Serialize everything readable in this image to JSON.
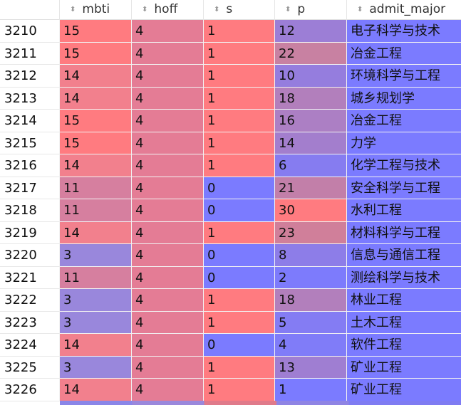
{
  "columns": [
    {
      "key": "mbti",
      "label": "mbti"
    },
    {
      "key": "hoff",
      "label": "hoff"
    },
    {
      "key": "s",
      "label": "s"
    },
    {
      "key": "p",
      "label": "p"
    },
    {
      "key": "admit_major",
      "label": "admit_major"
    }
  ],
  "sort_glyph": "⬍",
  "colors": {
    "mbti": {
      "15": "#ff7b80",
      "14": "#f2808d",
      "11": "#d67f9f",
      "3": "#9987dc"
    },
    "hoff": "#e47c95",
    "s": {
      "1": "#ff7b80",
      "0": "#7b7bff"
    },
    "p": {
      "1": "#7b7bff",
      "2": "#7d7bfc",
      "4": "#807cf8",
      "5": "#847cf3",
      "6": "#867cf0",
      "8": "#8d7de8",
      "10": "#957dde",
      "12": "#9c7ed6",
      "13": "#9f7ed2",
      "14": "#a37ecd",
      "16": "#ac7fc4",
      "18": "#b27fbc",
      "21": "#c27fa9",
      "22": "#c881a2",
      "23": "#d07f9a",
      "30": "#ff7b80"
    },
    "admit_major": "#7b7bff"
  },
  "rows": [
    {
      "index": "3210",
      "mbti": "15",
      "hoff": "4",
      "s": "1",
      "p": "12",
      "admit_major": "电子科学与技术"
    },
    {
      "index": "3211",
      "mbti": "15",
      "hoff": "4",
      "s": "1",
      "p": "22",
      "admit_major": "冶金工程"
    },
    {
      "index": "3212",
      "mbti": "14",
      "hoff": "4",
      "s": "1",
      "p": "10",
      "admit_major": "环境科学与工程"
    },
    {
      "index": "3213",
      "mbti": "14",
      "hoff": "4",
      "s": "1",
      "p": "18",
      "admit_major": "城乡规划学"
    },
    {
      "index": "3214",
      "mbti": "15",
      "hoff": "4",
      "s": "1",
      "p": "16",
      "admit_major": "冶金工程"
    },
    {
      "index": "3215",
      "mbti": "15",
      "hoff": "4",
      "s": "1",
      "p": "14",
      "admit_major": "力学"
    },
    {
      "index": "3216",
      "mbti": "14",
      "hoff": "4",
      "s": "1",
      "p": "6",
      "admit_major": "化学工程与技术"
    },
    {
      "index": "3217",
      "mbti": "11",
      "hoff": "4",
      "s": "0",
      "p": "21",
      "admit_major": "安全科学与工程"
    },
    {
      "index": "3218",
      "mbti": "11",
      "hoff": "4",
      "s": "0",
      "p": "30",
      "admit_major": "水利工程"
    },
    {
      "index": "3219",
      "mbti": "14",
      "hoff": "4",
      "s": "1",
      "p": "23",
      "admit_major": "材料科学与工程"
    },
    {
      "index": "3220",
      "mbti": "3",
      "hoff": "4",
      "s": "0",
      "p": "8",
      "admit_major": "信息与通信工程"
    },
    {
      "index": "3221",
      "mbti": "11",
      "hoff": "4",
      "s": "0",
      "p": "2",
      "admit_major": "测绘科学与技术"
    },
    {
      "index": "3222",
      "mbti": "3",
      "hoff": "4",
      "s": "1",
      "p": "18",
      "admit_major": "林业工程"
    },
    {
      "index": "3223",
      "mbti": "3",
      "hoff": "4",
      "s": "1",
      "p": "5",
      "admit_major": "土木工程"
    },
    {
      "index": "3224",
      "mbti": "14",
      "hoff": "4",
      "s": "0",
      "p": "4",
      "admit_major": "软件工程"
    },
    {
      "index": "3225",
      "mbti": "3",
      "hoff": "4",
      "s": "1",
      "p": "13",
      "admit_major": "矿业工程"
    },
    {
      "index": "3226",
      "mbti": "14",
      "hoff": "4",
      "s": "1",
      "p": "1",
      "admit_major": "矿业工程"
    }
  ]
}
